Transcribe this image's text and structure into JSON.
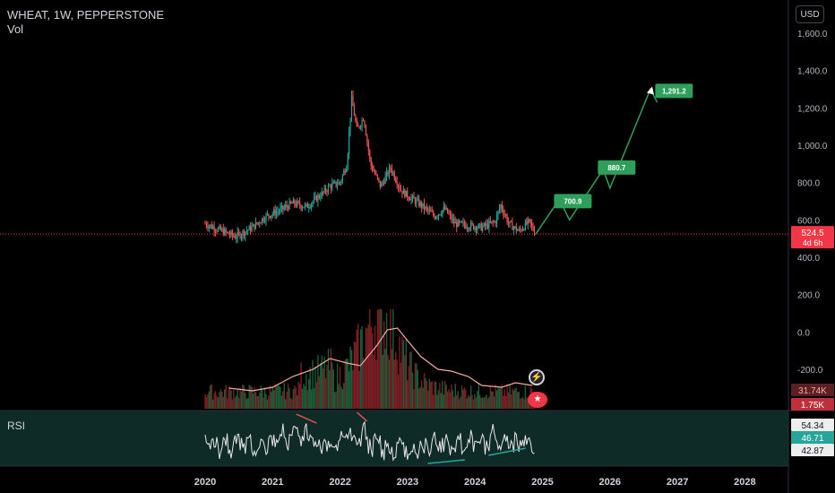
{
  "header": {
    "title": "WHEAT, 1W, PEPPERSTONE",
    "vol_label": "Vol",
    "currency": "USD",
    "rsi_label": "RSI"
  },
  "colors": {
    "up": "#26a69a",
    "down": "#ef5350",
    "projection": "#2e9e5b",
    "vol_ma": "#f7a9a0",
    "rsi": "#e8e8e8",
    "rsi_band": "#0f2b28",
    "price_line": "#f23645"
  },
  "price_axis": {
    "ticks": [
      1600,
      1400,
      1200,
      1000,
      800,
      600,
      400,
      200,
      0,
      -200
    ],
    "labels": [
      "1,600.0",
      "1,400.0",
      "1,200.0",
      "1,000.0",
      "800.0",
      "600.0",
      "400.0",
      "200.0",
      "0.0",
      "-200.0"
    ]
  },
  "time_axis": {
    "labels": [
      "2020",
      "2021",
      "2022",
      "2023",
      "2024",
      "2025",
      "2026",
      "2027",
      "2028"
    ]
  },
  "last_price": {
    "value": 524.5,
    "label": "524.5",
    "countdown": "4d 6h"
  },
  "volume_badges": {
    "ma": "31.74K",
    "vol": "1.75K"
  },
  "rsi_badges": {
    "upper": "54.34",
    "value": "46.71",
    "lower": "42.87"
  },
  "chart_data": {
    "type": "candlestick",
    "title": "WHEAT, 1W, PEPPERSTONE",
    "price_range": [
      -200,
      1600
    ],
    "price_path": [
      {
        "t": 2020.0,
        "v": 580
      },
      {
        "t": 2020.25,
        "v": 540
      },
      {
        "t": 2020.45,
        "v": 510
      },
      {
        "t": 2020.7,
        "v": 560
      },
      {
        "t": 2020.9,
        "v": 620
      },
      {
        "t": 2021.1,
        "v": 650
      },
      {
        "t": 2021.3,
        "v": 690
      },
      {
        "t": 2021.5,
        "v": 670
      },
      {
        "t": 2021.7,
        "v": 730
      },
      {
        "t": 2021.85,
        "v": 780
      },
      {
        "t": 2022.0,
        "v": 800
      },
      {
        "t": 2022.1,
        "v": 900
      },
      {
        "t": 2022.17,
        "v": 1250
      },
      {
        "t": 2022.25,
        "v": 1080
      },
      {
        "t": 2022.35,
        "v": 1150
      },
      {
        "t": 2022.45,
        "v": 900
      },
      {
        "t": 2022.6,
        "v": 780
      },
      {
        "t": 2022.75,
        "v": 880
      },
      {
        "t": 2022.9,
        "v": 760
      },
      {
        "t": 2023.0,
        "v": 730
      },
      {
        "t": 2023.2,
        "v": 680
      },
      {
        "t": 2023.4,
        "v": 620
      },
      {
        "t": 2023.55,
        "v": 660
      },
      {
        "t": 2023.7,
        "v": 580
      },
      {
        "t": 2023.9,
        "v": 570
      },
      {
        "t": 2024.1,
        "v": 560
      },
      {
        "t": 2024.3,
        "v": 590
      },
      {
        "t": 2024.38,
        "v": 680
      },
      {
        "t": 2024.5,
        "v": 580
      },
      {
        "t": 2024.65,
        "v": 540
      },
      {
        "t": 2024.8,
        "v": 590
      },
      {
        "t": 2024.9,
        "v": 524.5
      }
    ],
    "projection": [
      {
        "t": 2024.9,
        "v": 524.5
      },
      {
        "t": 2025.25,
        "v": 710
      },
      {
        "t": 2025.4,
        "v": 600
      },
      {
        "t": 2025.9,
        "v": 870
      },
      {
        "t": 2026.0,
        "v": 770
      },
      {
        "t": 2026.6,
        "v": 1300
      },
      {
        "t": 2026.7,
        "v": 1230
      }
    ],
    "targets": [
      {
        "t": 2025.45,
        "v": 700.9,
        "label": "700.9"
      },
      {
        "t": 2026.1,
        "v": 880.7,
        "label": "880.7"
      },
      {
        "t": 2026.95,
        "v": 1291.2,
        "label": "1,291.2"
      }
    ]
  }
}
